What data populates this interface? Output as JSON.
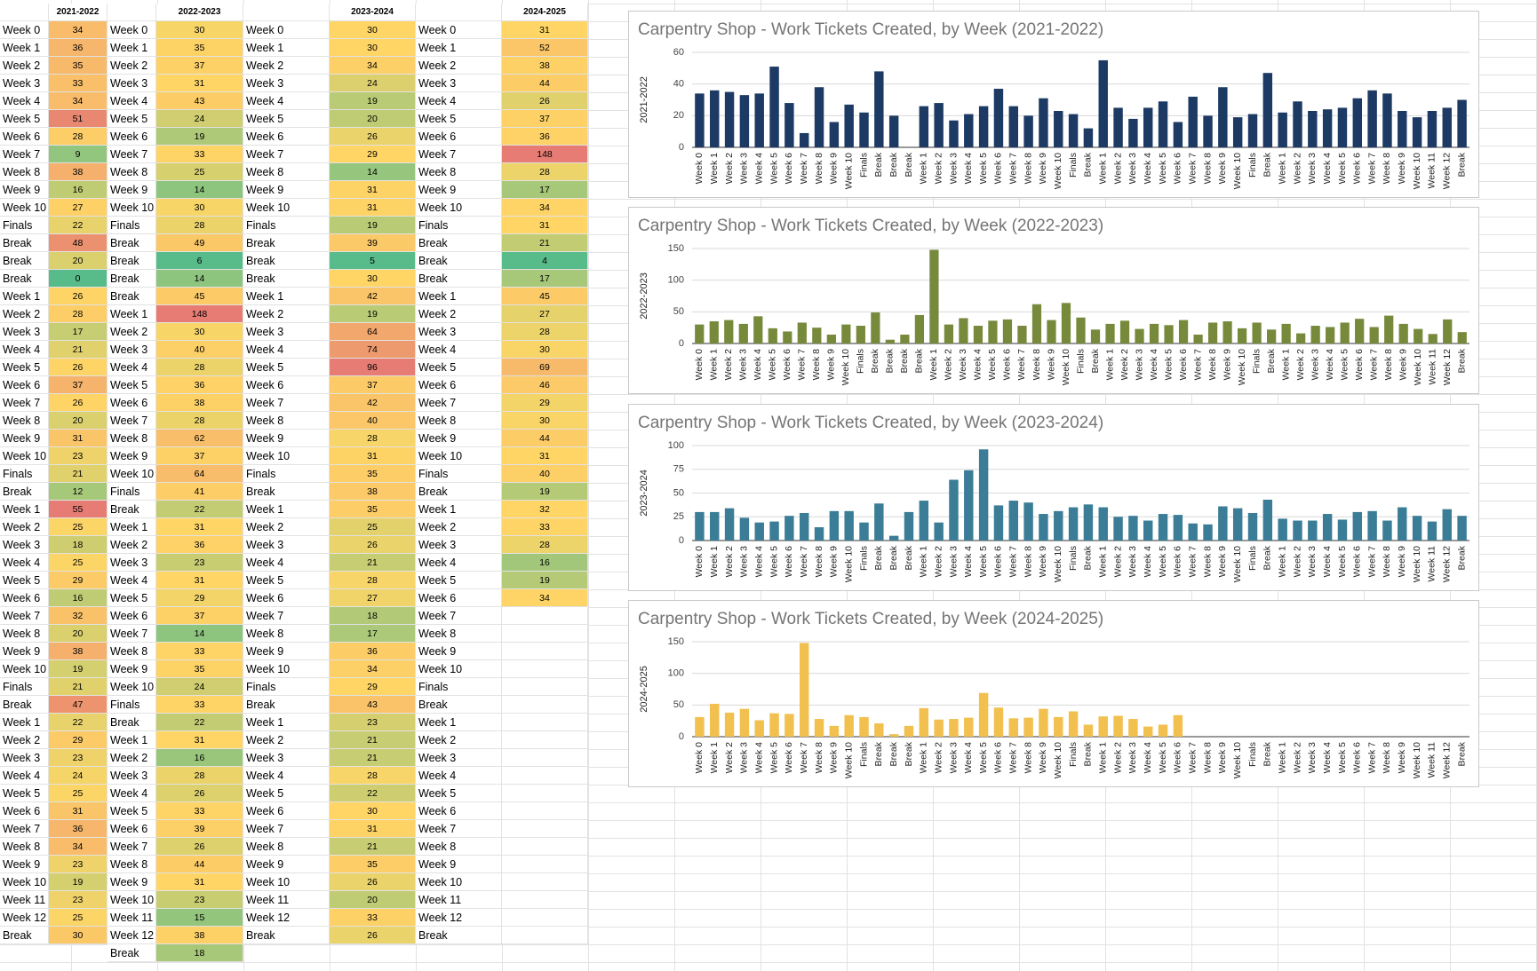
{
  "chart_data": [
    {
      "type": "bar",
      "title": "Carpentry Shop - Work Tickets Created, by Week (2021-2022)",
      "y_label": "2021-2022",
      "color": "#1c3a63",
      "ylim": [
        0,
        60
      ],
      "yticks": [
        0,
        20,
        40,
        60
      ],
      "grid": true,
      "categories": [
        "Week 0",
        "Week 1",
        "Week 2",
        "Week 3",
        "Week 4",
        "Week 5",
        "Week 6",
        "Week 7",
        "Week 8",
        "Week 9",
        "Week 10",
        "Finals",
        "Break",
        "Break",
        "Break",
        "Week 1",
        "Week 2",
        "Week 3",
        "Week 4",
        "Week 5",
        "Week 6",
        "Week 7",
        "Week 8",
        "Week 9",
        "Week 10",
        "Finals",
        "Break",
        "Week 1",
        "Week 2",
        "Week 3",
        "Week 4",
        "Week 5",
        "Week 6",
        "Week 7",
        "Week 8",
        "Week 9",
        "Week 10",
        "Finals",
        "Break",
        "Week 1",
        "Week 2",
        "Week 3",
        "Week 4",
        "Week 5",
        "Week 6",
        "Week 7",
        "Week 8",
        "Week 9",
        "Week 10",
        "Week 11",
        "Week 12",
        "Break"
      ],
      "values": [
        34,
        36,
        35,
        33,
        34,
        51,
        28,
        9,
        38,
        16,
        27,
        22,
        48,
        20,
        0,
        26,
        28,
        17,
        21,
        26,
        37,
        26,
        20,
        31,
        23,
        21,
        12,
        55,
        25,
        18,
        25,
        29,
        16,
        32,
        20,
        38,
        19,
        21,
        47,
        22,
        29,
        23,
        24,
        25,
        31,
        36,
        34,
        23,
        19,
        23,
        25,
        30
      ]
    },
    {
      "type": "bar",
      "title": "Carpentry Shop - Work Tickets Created, by Week (2022-2023)",
      "y_label": "2022-2023",
      "color": "#778a3c",
      "ylim": [
        0,
        150
      ],
      "yticks": [
        0,
        50,
        100,
        150
      ],
      "grid": true,
      "categories": [
        "Week 0",
        "Week 1",
        "Week 2",
        "Week 3",
        "Week 4",
        "Week 5",
        "Week 6",
        "Week 7",
        "Week 8",
        "Week 9",
        "Week 10",
        "Finals",
        "Break",
        "Break",
        "Break",
        "Break",
        "Week 1",
        "Week 2",
        "Week 3",
        "Week 4",
        "Week 5",
        "Week 6",
        "Week 7",
        "Week 8",
        "Week 9",
        "Week 10",
        "Finals",
        "Break",
        "Week 1",
        "Week 2",
        "Week 3",
        "Week 4",
        "Week 5",
        "Week 6",
        "Week 7",
        "Week 8",
        "Week 9",
        "Week 10",
        "Finals",
        "Break",
        "Week 1",
        "Week 2",
        "Week 3",
        "Week 4",
        "Week 5",
        "Week 6",
        "Week 7",
        "Week 8",
        "Week 9",
        "Week 10",
        "Week 11",
        "Week 12",
        "Break"
      ],
      "values": [
        30,
        35,
        37,
        31,
        43,
        24,
        19,
        33,
        25,
        14,
        30,
        28,
        49,
        6,
        14,
        45,
        148,
        30,
        40,
        28,
        36,
        38,
        28,
        62,
        37,
        64,
        41,
        22,
        31,
        36,
        23,
        31,
        29,
        37,
        14,
        33,
        35,
        24,
        33,
        22,
        31,
        16,
        28,
        26,
        33,
        39,
        26,
        44,
        31,
        23,
        15,
        38,
        18
      ]
    },
    {
      "type": "bar",
      "title": "Carpentry Shop - Work Tickets Created, by Week (2023-2024)",
      "y_label": "2023-2024",
      "color": "#3b7d96",
      "ylim": [
        0,
        100
      ],
      "yticks": [
        0,
        25,
        50,
        75,
        100
      ],
      "grid": true,
      "categories": [
        "Week 0",
        "Week 1",
        "Week 2",
        "Week 3",
        "Week 4",
        "Week 5",
        "Week 6",
        "Week 7",
        "Week 8",
        "Week 9",
        "Week 10",
        "Finals",
        "Break",
        "Break",
        "Break",
        "Week 1",
        "Week 2",
        "Week 3",
        "Week 4",
        "Week 5",
        "Week 6",
        "Week 7",
        "Week 8",
        "Week 9",
        "Week 10",
        "Finals",
        "Break",
        "Week 1",
        "Week 2",
        "Week 3",
        "Week 4",
        "Week 5",
        "Week 6",
        "Week 7",
        "Week 8",
        "Week 9",
        "Week 10",
        "Finals",
        "Break",
        "Week 1",
        "Week 2",
        "Week 3",
        "Week 4",
        "Week 5",
        "Week 6",
        "Week 7",
        "Week 8",
        "Week 9",
        "Week 10",
        "Week 11",
        "Week 12",
        "Break"
      ],
      "values": [
        30,
        30,
        34,
        24,
        19,
        20,
        26,
        29,
        14,
        31,
        31,
        19,
        39,
        5,
        30,
        42,
        19,
        64,
        74,
        96,
        37,
        42,
        40,
        28,
        31,
        35,
        38,
        35,
        25,
        26,
        21,
        28,
        27,
        18,
        17,
        36,
        34,
        29,
        43,
        23,
        21,
        21,
        28,
        22,
        30,
        31,
        21,
        35,
        26,
        20,
        33,
        26
      ]
    },
    {
      "type": "bar",
      "title": "Carpentry Shop - Work Tickets Created, by Week (2024-2025)",
      "y_label": "2024-2025",
      "color": "#f1c04f",
      "ylim": [
        0,
        150
      ],
      "yticks": [
        0,
        50,
        100,
        150
      ],
      "grid": true,
      "categories": [
        "Week 0",
        "Week 1",
        "Week 2",
        "Week 3",
        "Week 4",
        "Week 5",
        "Week 6",
        "Week 7",
        "Week 8",
        "Week 9",
        "Week 10",
        "Finals",
        "Break",
        "Break",
        "Break",
        "Week 1",
        "Week 2",
        "Week 3",
        "Week 4",
        "Week 5",
        "Week 6",
        "Week 7",
        "Week 8",
        "Week 9",
        "Week 10",
        "Finals",
        "Break",
        "Week 1",
        "Week 2",
        "Week 3",
        "Week 4",
        "Week 5",
        "Week 6",
        "Week 7",
        "Week 8",
        "Week 9",
        "Week 10",
        "Finals",
        "Break",
        "Week 1",
        "Week 2",
        "Week 3",
        "Week 4",
        "Week 5",
        "Week 6",
        "Week 7",
        "Week 8",
        "Week 9",
        "Week 10",
        "Week 11",
        "Week 12",
        "Break"
      ],
      "values": [
        31,
        52,
        38,
        44,
        26,
        37,
        36,
        148,
        28,
        17,
        34,
        31,
        21,
        4,
        17,
        45,
        27,
        28,
        30,
        69,
        46,
        29,
        30,
        44,
        31,
        40,
        19,
        32,
        33,
        28,
        16,
        19,
        34,
        null,
        null,
        null,
        null,
        null,
        null,
        null,
        null,
        null,
        null,
        null,
        null,
        null,
        null,
        null,
        null,
        null,
        null,
        null
      ]
    }
  ],
  "heatmap": {
    "min_color": "#57bb8a",
    "mid_color": "#ffd666",
    "max_color": "#e67c73"
  }
}
